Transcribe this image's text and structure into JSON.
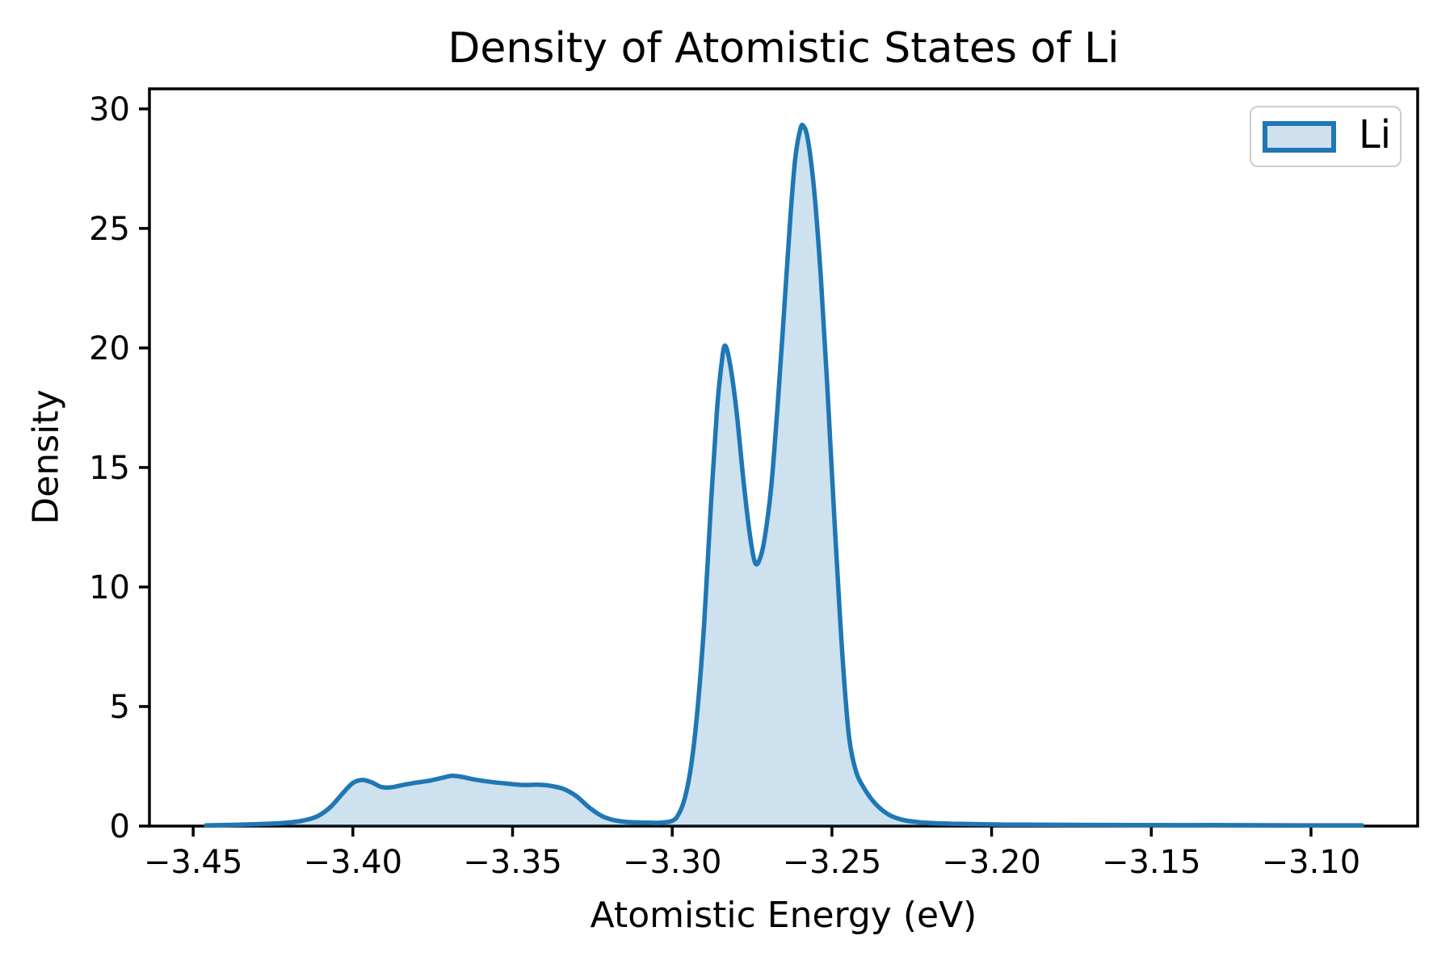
{
  "chart_data": {
    "type": "area",
    "title": "Density of Atomistic States of Li",
    "xlabel": "Atomistic Energy (eV)",
    "ylabel": "Density",
    "xlim": [
      -3.4637,
      -3.0666
    ],
    "ylim": [
      0,
      30.84
    ],
    "grid": false,
    "xticks": {
      "values": [
        -3.45,
        -3.4,
        -3.35,
        -3.3,
        -3.25,
        -3.2,
        -3.15,
        -3.1
      ],
      "labels": [
        "−3.45",
        "−3.40",
        "−3.35",
        "−3.30",
        "−3.25",
        "−3.20",
        "−3.15",
        "−3.10"
      ]
    },
    "yticks": {
      "values": [
        0,
        5,
        10,
        15,
        20,
        25,
        30
      ],
      "labels": [
        "0",
        "5",
        "10",
        "15",
        "20",
        "25",
        "30"
      ]
    },
    "legend": {
      "position": "upper right",
      "entries": [
        {
          "label": "Li",
          "line_color": "#1f77b4",
          "fill_color": "#cfe1ef"
        }
      ]
    },
    "series": [
      {
        "name": "Li",
        "points": [
          [
            -3.446,
            0.03
          ],
          [
            -3.438,
            0.05
          ],
          [
            -3.43,
            0.08
          ],
          [
            -3.422,
            0.13
          ],
          [
            -3.416,
            0.22
          ],
          [
            -3.411,
            0.42
          ],
          [
            -3.407,
            0.8
          ],
          [
            -3.403,
            1.4
          ],
          [
            -3.4,
            1.8
          ],
          [
            -3.397,
            1.93
          ],
          [
            -3.394,
            1.82
          ],
          [
            -3.391,
            1.63
          ],
          [
            -3.388,
            1.62
          ],
          [
            -3.384,
            1.73
          ],
          [
            -3.38,
            1.82
          ],
          [
            -3.376,
            1.9
          ],
          [
            -3.372,
            2.02
          ],
          [
            -3.369,
            2.1
          ],
          [
            -3.366,
            2.06
          ],
          [
            -3.362,
            1.95
          ],
          [
            -3.357,
            1.85
          ],
          [
            -3.352,
            1.78
          ],
          [
            -3.347,
            1.72
          ],
          [
            -3.342,
            1.73
          ],
          [
            -3.338,
            1.68
          ],
          [
            -3.334,
            1.55
          ],
          [
            -3.33,
            1.25
          ],
          [
            -3.326,
            0.78
          ],
          [
            -3.322,
            0.42
          ],
          [
            -3.318,
            0.24
          ],
          [
            -3.314,
            0.17
          ],
          [
            -3.309,
            0.15
          ],
          [
            -3.304,
            0.14
          ],
          [
            -3.3,
            0.22
          ],
          [
            -3.298,
            0.5
          ],
          [
            -3.296,
            1.2
          ],
          [
            -3.294,
            2.6
          ],
          [
            -3.292,
            5.0
          ],
          [
            -3.29,
            8.5
          ],
          [
            -3.288,
            13.2
          ],
          [
            -3.286,
            17.4
          ],
          [
            -3.2845,
            19.4
          ],
          [
            -3.2835,
            20.1
          ],
          [
            -3.282,
            19.4
          ],
          [
            -3.28,
            17.5
          ],
          [
            -3.2775,
            14.2
          ],
          [
            -3.2755,
            12.0
          ],
          [
            -3.274,
            11.0
          ],
          [
            -3.2725,
            11.2
          ],
          [
            -3.271,
            12.1
          ],
          [
            -3.269,
            14.2
          ],
          [
            -3.267,
            17.6
          ],
          [
            -3.265,
            21.5
          ],
          [
            -3.263,
            25.5
          ],
          [
            -3.2615,
            27.9
          ],
          [
            -3.26,
            29.1
          ],
          [
            -3.259,
            29.3
          ],
          [
            -3.2575,
            28.7
          ],
          [
            -3.2555,
            26.5
          ],
          [
            -3.2535,
            23.0
          ],
          [
            -3.2515,
            18.5
          ],
          [
            -3.2495,
            13.5
          ],
          [
            -3.2475,
            8.8
          ],
          [
            -3.246,
            5.8
          ],
          [
            -3.2445,
            3.6
          ],
          [
            -3.2425,
            2.3
          ],
          [
            -3.24,
            1.6
          ],
          [
            -3.2365,
            0.95
          ],
          [
            -3.2325,
            0.5
          ],
          [
            -3.2285,
            0.28
          ],
          [
            -3.224,
            0.18
          ],
          [
            -3.218,
            0.12
          ],
          [
            -3.21,
            0.09
          ],
          [
            -3.195,
            0.06
          ],
          [
            -3.175,
            0.05
          ],
          [
            -3.155,
            0.04
          ],
          [
            -3.13,
            0.04
          ],
          [
            -3.105,
            0.03
          ],
          [
            -3.084,
            0.03
          ]
        ]
      }
    ],
    "peaks_note": {
      "left_bump_max": [
        -3.369,
        2.1
      ],
      "peak_1": [
        -3.2835,
        20.1
      ],
      "valley": [
        -3.274,
        11.0
      ],
      "peak_2": [
        -3.259,
        29.3
      ]
    }
  },
  "colors": {
    "line": "#1f77b4",
    "fill": "rgba(31,119,180,0.22)",
    "axis": "#000000",
    "text": "#000000",
    "legend_border": "#cccccc"
  }
}
